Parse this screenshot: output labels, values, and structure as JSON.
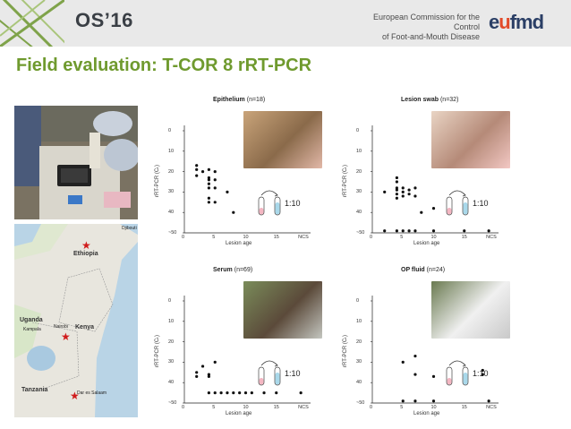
{
  "header": {
    "title": "OS’16",
    "org_line1": "European Commission for the Control",
    "org_line2": "of Foot-and-Mouth Disease",
    "brand": "eufmd"
  },
  "slide": {
    "title": "Field evaluation: T-COR 8 rRT-PCR"
  },
  "map": {
    "countries": [
      "Ethiopia",
      "Uganda",
      "Kenya",
      "Tanzania"
    ],
    "places": [
      "Djibouti",
      "Kampala",
      "Nairobi",
      "Dar es Salaam"
    ]
  },
  "panels": [
    {
      "name": "Epithelium",
      "n": "(n=18)",
      "ratio": "1:10"
    },
    {
      "name": "Lesion swab",
      "n": "(n=32)",
      "ratio": "1:10"
    },
    {
      "name": "Serum",
      "n": "(n=69)",
      "ratio": "1:10"
    },
    {
      "name": "OP fluid",
      "n": "(n=24)",
      "ratio": "1:10"
    }
  ],
  "axes": {
    "ylabel": "rRT-PCR (Cₜ)",
    "xlabel": "Lesion age",
    "yticks": [
      "0",
      "10",
      "20",
      "30",
      "40",
      "~50"
    ],
    "xticks": [
      "0",
      "5",
      "10",
      "15",
      "NCS"
    ]
  },
  "chart_data": [
    {
      "type": "scatter",
      "title": "Epithelium (n=18)",
      "xlabel": "Lesion age",
      "ylabel": "rRT-PCR (Ct)",
      "ylim": [
        0,
        50
      ],
      "xlim": [
        0,
        20
      ],
      "points": [
        [
          2,
          17
        ],
        [
          2,
          19
        ],
        [
          2,
          22
        ],
        [
          3,
          20
        ],
        [
          4,
          19
        ],
        [
          4,
          23
        ],
        [
          4,
          24
        ],
        [
          4,
          26
        ],
        [
          4,
          28
        ],
        [
          4,
          33
        ],
        [
          4,
          35
        ],
        [
          5,
          20
        ],
        [
          5,
          24
        ],
        [
          5,
          28
        ],
        [
          5,
          35
        ],
        [
          7,
          30
        ],
        [
          8,
          40
        ]
      ]
    },
    {
      "type": "scatter",
      "title": "Lesion swab (n=32)",
      "xlabel": "Lesion age",
      "ylabel": "rRT-PCR (Ct)",
      "ylim": [
        0,
        50
      ],
      "xlim": [
        0,
        20
      ],
      "points": [
        [
          2,
          30
        ],
        [
          4,
          23
        ],
        [
          4,
          25
        ],
        [
          4,
          28
        ],
        [
          4,
          29
        ],
        [
          4,
          31
        ],
        [
          4,
          33
        ],
        [
          5,
          28
        ],
        [
          5,
          30
        ],
        [
          5,
          32
        ],
        [
          6,
          29
        ],
        [
          6,
          31
        ],
        [
          7,
          28
        ],
        [
          7,
          32
        ],
        [
          8,
          40
        ],
        [
          10,
          38
        ],
        [
          2,
          49
        ],
        [
          4,
          49
        ],
        [
          5,
          49
        ],
        [
          6,
          49
        ],
        [
          7,
          49
        ],
        [
          10,
          49
        ],
        [
          15,
          49
        ],
        [
          19,
          49
        ]
      ]
    },
    {
      "type": "scatter",
      "title": "Serum (n=69)",
      "xlabel": "Lesion age",
      "ylabel": "rRT-PCR (Ct)",
      "ylim": [
        0,
        50
      ],
      "xlim": [
        0,
        20
      ],
      "points": [
        [
          2,
          35
        ],
        [
          2,
          37
        ],
        [
          3,
          32
        ],
        [
          4,
          36
        ],
        [
          4,
          37
        ],
        [
          5,
          30
        ],
        [
          4,
          45
        ],
        [
          5,
          45
        ],
        [
          6,
          45
        ],
        [
          7,
          45
        ],
        [
          8,
          45
        ],
        [
          9,
          45
        ],
        [
          10,
          45
        ],
        [
          11,
          45
        ],
        [
          13,
          45
        ],
        [
          15,
          45
        ],
        [
          19,
          45
        ]
      ]
    },
    {
      "type": "scatter",
      "title": "OP fluid (n=24)",
      "xlabel": "Lesion age",
      "ylabel": "rRT-PCR (Ct)",
      "ylim": [
        0,
        50
      ],
      "xlim": [
        0,
        20
      ],
      "points": [
        [
          5,
          30
        ],
        [
          7,
          27
        ],
        [
          7,
          36
        ],
        [
          10,
          37
        ],
        [
          18,
          34
        ],
        [
          18,
          36
        ],
        [
          5,
          49
        ],
        [
          7,
          49
        ],
        [
          10,
          49
        ],
        [
          19,
          49
        ]
      ]
    }
  ]
}
